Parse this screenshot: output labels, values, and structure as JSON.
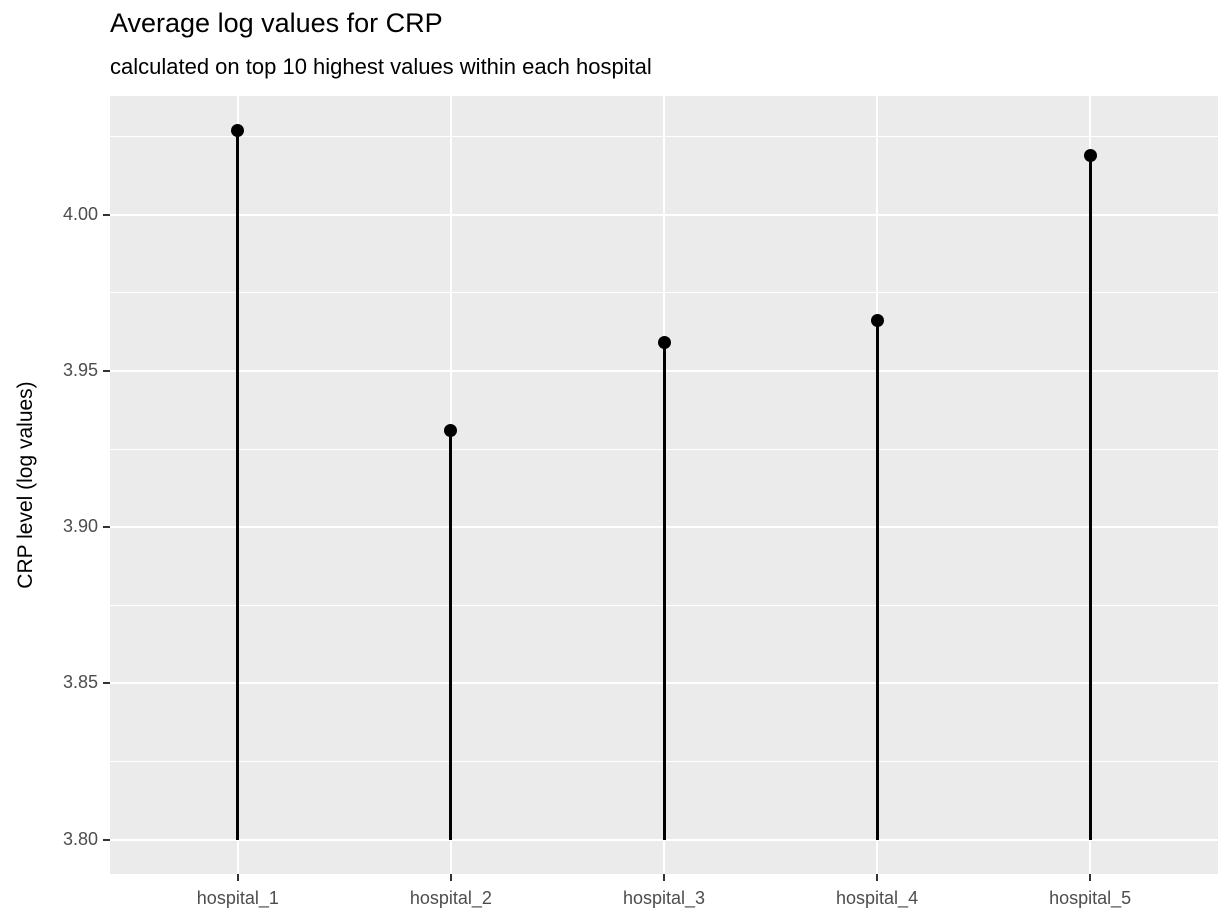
{
  "chart": {
    "title": "Average log values for CRP",
    "subtitle": "calculated on top 10 highest values within each hospital",
    "ylabel": "CRP level (log values)",
    "xlabel": ""
  },
  "chart_data": {
    "type": "lollipop",
    "title": "Average log values for CRP",
    "subtitle": "calculated on top 10 highest values within each hospital",
    "xlabel": "",
    "ylabel": "CRP level (log values)",
    "categories": [
      "hospital_1",
      "hospital_2",
      "hospital_3",
      "hospital_4",
      "hospital_5"
    ],
    "values": [
      4.027,
      3.931,
      3.959,
      3.966,
      4.019
    ],
    "stem_base": 3.8,
    "ylim": [
      3.789,
      4.038
    ],
    "yticks": [
      3.8,
      3.85,
      3.9,
      3.95,
      4.0
    ],
    "ytick_labels": [
      "3.80",
      "3.85",
      "3.90",
      "3.95",
      "4.00"
    ],
    "minor_yticks": [
      3.825,
      3.875,
      3.925,
      3.975,
      4.025
    ],
    "grid": "on",
    "legend": "none",
    "colors": {
      "panel_bg": "#EBEBEB",
      "grid": "#FFFFFF",
      "point": "#000000",
      "stem": "#000000",
      "axis_text": "#4D4D4D",
      "tick_mark": "#333333",
      "title_text": "#000000"
    }
  }
}
